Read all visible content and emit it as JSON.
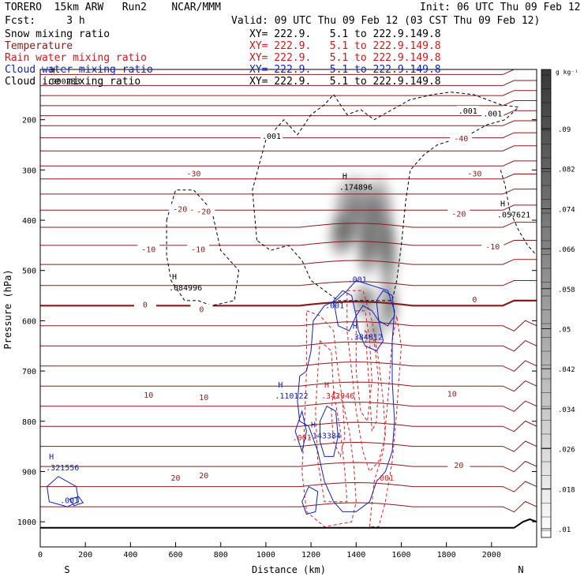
{
  "header": {
    "model": "TORERO  15km ARW   Run2    NCAR/MMM",
    "init": "Init: 06 UTC Thu 09 Feb 12",
    "fcst": "Fcst:     3 h",
    "valid": "Valid: 09 UTC Thu 09 Feb 12 (03 CST Thu 09 Feb 12)",
    "xy": "XY= 222.9.   5.1 to 222.9.149.8"
  },
  "chart_data": {
    "type": "cross-section",
    "xlabel": "Distance (km)",
    "ylabel": "Pressure (hPa)",
    "xlim": [
      0,
      2200
    ],
    "ylim": [
      1050,
      100
    ],
    "x_ticks": [
      0,
      200,
      400,
      600,
      800,
      1000,
      1200,
      1400,
      1600,
      1800,
      2000
    ],
    "y_ticks": [
      200,
      300,
      400,
      500,
      600,
      700,
      800,
      900,
      1000
    ],
    "x_endpoints": {
      "left": "S",
      "right": "N"
    },
    "colorbar": {
      "unit": "g kg⁻¹",
      "ticks": [
        ".01",
        ".018",
        ".026",
        ".034",
        ".042",
        ".05",
        ".058",
        ".066",
        ".074",
        ".082",
        ".09"
      ]
    },
    "series": [
      {
        "name": "Snow mixing ratio",
        "color": "#000000",
        "style": "shaded"
      },
      {
        "name": "Temperature",
        "color": "#8b1a1a",
        "style": "solid"
      },
      {
        "name": "Rain water mixing ratio",
        "color": "#e02020",
        "style": "dashed"
      },
      {
        "name": "Cloud water mixing ratio",
        "color": "#1020c0",
        "style": "solid"
      },
      {
        "name": "Cloud ice mixing ratio",
        "color": "#000000",
        "style": "dashed"
      }
    ],
    "temperature_labels": [
      {
        "x": 680,
        "p": 310,
        "text": "-30"
      },
      {
        "x": 1925,
        "p": 310,
        "text": "-30"
      },
      {
        "x": 620,
        "p": 380,
        "text": "-20"
      },
      {
        "x": 725,
        "p": 385,
        "text": "-20"
      },
      {
        "x": 1855,
        "p": 390,
        "text": "-20"
      },
      {
        "x": 1865,
        "p": 240,
        "text": "-40"
      },
      {
        "x": 480,
        "p": 460,
        "text": "-10"
      },
      {
        "x": 700,
        "p": 460,
        "text": "-10"
      },
      {
        "x": 2005,
        "p": 455,
        "text": "-10"
      },
      {
        "x": 465,
        "p": 570,
        "text": "0"
      },
      {
        "x": 715,
        "p": 580,
        "text": "0"
      },
      {
        "x": 1925,
        "p": 560,
        "text": "0"
      },
      {
        "x": 480,
        "p": 750,
        "text": "10"
      },
      {
        "x": 725,
        "p": 755,
        "text": "10"
      },
      {
        "x": 1825,
        "p": 748,
        "text": "10"
      },
      {
        "x": 600,
        "p": 915,
        "text": "20"
      },
      {
        "x": 725,
        "p": 910,
        "text": "20"
      },
      {
        "x": 1855,
        "p": 890,
        "text": "20"
      }
    ],
    "ice_labels": [
      {
        "x": 1025,
        "p": 235,
        "text": ".001"
      },
      {
        "x": 1895,
        "p": 185,
        "text": ".001"
      },
      {
        "x": 2005,
        "p": 190,
        "text": ".001"
      }
    ],
    "cloud_labels": [
      {
        "x": 1405,
        "p": 520,
        "text": ".001"
      },
      {
        "x": 1305,
        "p": 572,
        "text": ".001"
      },
      {
        "x": 130,
        "p": 960,
        "text": ".001"
      }
    ],
    "rain_labels": [
      {
        "x": 1160,
        "p": 835,
        "text": ".001"
      },
      {
        "x": 1525,
        "p": 915,
        "text": ".001"
      }
    ],
    "max_markers": [
      {
        "x": 1395,
        "p": 330,
        "text": ".174896",
        "color": "#000000"
      },
      {
        "x": 2095,
        "p": 385,
        "text": ".057621",
        "color": "#000000"
      },
      {
        "x": 640,
        "p": 530,
        "text": ".084996",
        "color": "#000000"
      },
      {
        "x": 1440,
        "p": 628,
        "text": ".384812",
        "color": "#1020c0"
      },
      {
        "x": 1110,
        "p": 745,
        "text": ".110122",
        "color": "#1020c0"
      },
      {
        "x": 1315,
        "p": 745,
        "text": ".342946",
        "color": "#d01818"
      },
      {
        "x": 1255,
        "p": 825,
        "text": ".143384",
        "color": "#1020c0"
      },
      {
        "x": 95,
        "p": 888,
        "text": ".321556",
        "color": "#1020c0"
      },
      {
        "x": 100,
        "p": 120,
        "text": ".000283",
        "color": "#000000"
      }
    ]
  }
}
